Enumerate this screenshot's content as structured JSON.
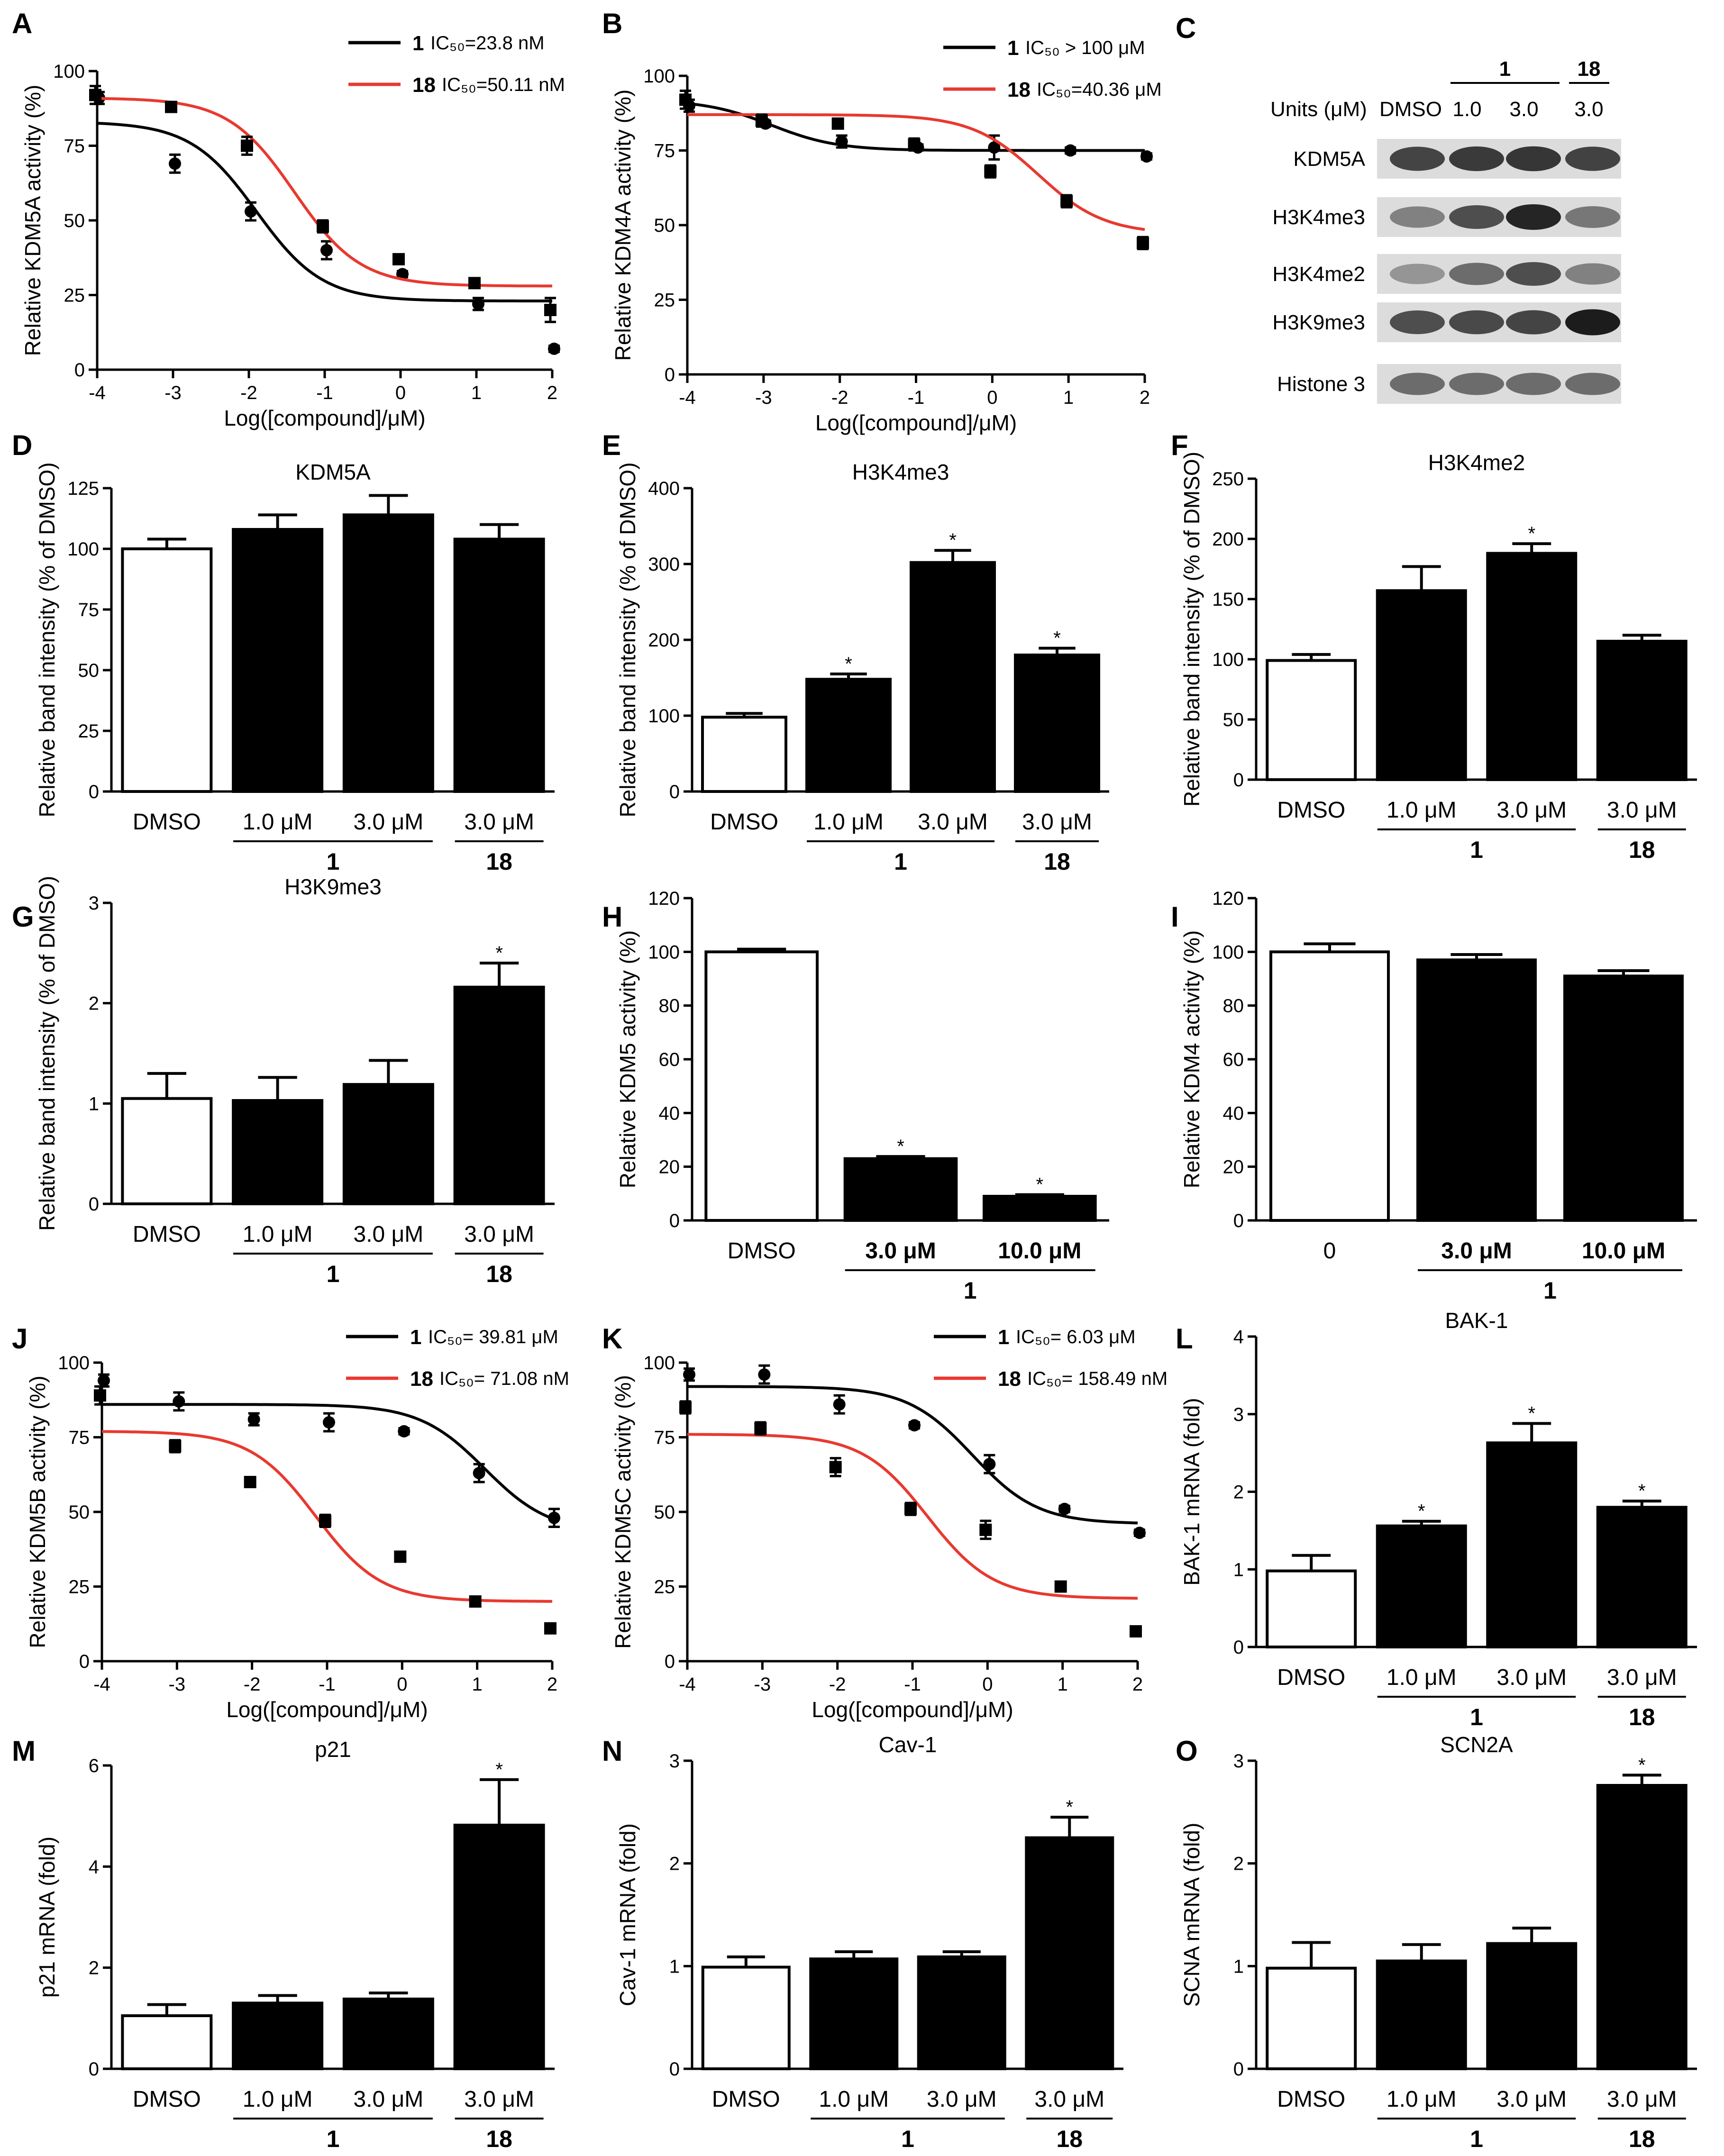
{
  "colors": {
    "compound1": "#000000",
    "compound18": "#e8392f"
  },
  "chart_data": [
    {
      "id": "A",
      "type": "line",
      "panel_label": "A",
      "xlabel": "Log([compound]/μM)",
      "ylabel": "Relative KDM5A activity (%)",
      "xlim": [
        -4,
        2
      ],
      "ylim": [
        0,
        100
      ],
      "xticks": [
        -4,
        -3,
        -2,
        -1,
        0,
        1,
        2
      ],
      "yticks": [
        0,
        25,
        50,
        75,
        100
      ],
      "series": [
        {
          "name": "1",
          "ic50_label": "IC₅₀=23.8 nM",
          "color": "#000000",
          "marker": "circle",
          "x": [
            -4,
            -3,
            -2,
            -1,
            0,
            1,
            2
          ],
          "y": [
            91,
            69,
            53,
            40,
            32,
            22,
            7
          ],
          "err": [
            2,
            3,
            3,
            3,
            1,
            2,
            1
          ],
          "fit": {
            "top": 83,
            "bottom": 23,
            "logEC50": -1.9,
            "hill": 1
          }
        },
        {
          "name": "18",
          "ic50_label": "IC₅₀=50.11 nM",
          "color": "#e8392f",
          "marker": "square",
          "x": [
            -4,
            -3,
            -2,
            -1,
            0,
            1,
            2
          ],
          "y": [
            92,
            88,
            75,
            48,
            37,
            29,
            20
          ],
          "err": [
            3,
            1,
            3,
            2,
            1,
            1,
            4
          ],
          "fit": {
            "top": 91,
            "bottom": 28,
            "logEC50": -1.4,
            "hill": 1
          }
        }
      ]
    },
    {
      "id": "B",
      "type": "line",
      "panel_label": "B",
      "xlabel": "Log([compound]/μM)",
      "ylabel": "Relative KDM4A activity (%)",
      "xlim": [
        -4,
        2
      ],
      "ylim": [
        0,
        100
      ],
      "xticks": [
        -4,
        -3,
        -2,
        -1,
        0,
        1,
        2
      ],
      "yticks": [
        0,
        25,
        50,
        75,
        100
      ],
      "series": [
        {
          "name": "1",
          "ic50_label": "IC₅₀ > 100 μM",
          "color": "#000000",
          "marker": "circle",
          "x": [
            -4,
            -3,
            -2,
            -1,
            0,
            1,
            2
          ],
          "y": [
            90,
            84,
            78,
            76,
            76,
            75,
            73
          ],
          "err": [
            2,
            1,
            2,
            1,
            4,
            1,
            1
          ],
          "fit": {
            "top": 92,
            "bottom": 75,
            "logEC50": -2.9,
            "hill": 1
          }
        },
        {
          "name": "18",
          "ic50_label": "IC₅₀=40.36 μM",
          "color": "#e8392f",
          "marker": "square",
          "x": [
            -4,
            -3,
            -2,
            -1,
            0,
            1,
            2
          ],
          "y": [
            92,
            85,
            84,
            77,
            68,
            58,
            44
          ],
          "err": [
            3,
            2,
            1,
            2,
            2,
            2,
            2
          ],
          "fit": {
            "top": 87,
            "bottom": 47,
            "logEC50": 0.6,
            "hill": 1
          }
        }
      ]
    },
    {
      "id": "D",
      "type": "bar",
      "panel_label": "D",
      "title": "KDM5A",
      "ylabel": "Relative band intensity (% of DMSO)",
      "ylim": [
        0,
        125
      ],
      "yticks": [
        0,
        25,
        50,
        75,
        100,
        125
      ],
      "categories": [
        "DMSO",
        "1.0 μM",
        "3.0 μM",
        "3.0 μM"
      ],
      "groups": [
        "1",
        "18"
      ],
      "values": [
        100,
        108,
        114,
        104
      ],
      "err": [
        4,
        6,
        8,
        6
      ],
      "sig": [
        "",
        "",
        "",
        ""
      ]
    },
    {
      "id": "E",
      "type": "bar",
      "panel_label": "E",
      "title": "H3K4me3",
      "ylabel": "Relative band intensity (% of DMSO)",
      "ylim": [
        0,
        400
      ],
      "yticks": [
        0,
        100,
        200,
        300,
        400
      ],
      "categories": [
        "DMSO",
        "1.0 μM",
        "3.0 μM",
        "3.0 μM"
      ],
      "groups": [
        "1",
        "18"
      ],
      "values": [
        98,
        148,
        302,
        180
      ],
      "err": [
        5,
        7,
        16,
        9
      ],
      "sig": [
        "",
        "*",
        "*",
        "*"
      ]
    },
    {
      "id": "F",
      "type": "bar",
      "panel_label": "F",
      "title": "H3K4me2",
      "ylabel": "Relative band intensity (% of DMSO)",
      "ylim": [
        0,
        250
      ],
      "yticks": [
        0,
        50,
        100,
        150,
        200,
        250
      ],
      "categories": [
        "DMSO",
        "1.0 μM",
        "3.0 μM",
        "3.0 μM"
      ],
      "groups": [
        "1",
        "18"
      ],
      "values": [
        99,
        157,
        188,
        115
      ],
      "err": [
        5,
        20,
        8,
        5
      ],
      "sig": [
        "",
        "",
        "*",
        ""
      ]
    },
    {
      "id": "G",
      "type": "bar",
      "panel_label": "G",
      "title": "H3K9me3",
      "ylabel": "Relative band intensity (% of DMSO)",
      "ylim": [
        0,
        3
      ],
      "yticks": [
        0,
        1,
        2,
        3
      ],
      "categories": [
        "DMSO",
        "1.0 μM",
        "3.0 μM",
        "3.0 μM"
      ],
      "groups": [
        "1",
        "18"
      ],
      "values": [
        1.05,
        1.03,
        1.19,
        2.16
      ],
      "err": [
        0.25,
        0.23,
        0.24,
        0.24
      ],
      "sig": [
        "",
        "",
        "",
        "*"
      ]
    },
    {
      "id": "H",
      "type": "bar",
      "panel_label": "H",
      "ylabel": "Relative KDM5 activity (%)",
      "ylim": [
        0,
        120
      ],
      "yticks": [
        0,
        20,
        40,
        60,
        80,
        100,
        120
      ],
      "categories": [
        "DMSO",
        "3.0 μM",
        "10.0 μM"
      ],
      "groups": [
        "1"
      ],
      "values": [
        100,
        23,
        9
      ],
      "err": [
        1,
        0.8,
        0.6
      ],
      "sig": [
        "",
        "*",
        "*"
      ]
    },
    {
      "id": "I",
      "type": "bar",
      "panel_label": "I",
      "ylabel": "Relative KDM4 activity (%)",
      "ylim": [
        0,
        120
      ],
      "yticks": [
        0,
        20,
        40,
        60,
        80,
        100,
        120
      ],
      "categories": [
        "0",
        "3.0 μM",
        "10.0 μM"
      ],
      "groups": [
        "1"
      ],
      "values": [
        100,
        97,
        91
      ],
      "err": [
        3,
        2,
        2
      ],
      "sig": [
        "",
        "",
        ""
      ]
    },
    {
      "id": "J",
      "type": "line",
      "panel_label": "J",
      "xlabel": "Log([compound]/μM)",
      "ylabel": "Relative KDM5B activity (%)",
      "xlim": [
        -4,
        2
      ],
      "ylim": [
        0,
        100
      ],
      "xticks": [
        -4,
        -3,
        -2,
        -1,
        0,
        1,
        2
      ],
      "yticks": [
        0,
        25,
        50,
        75,
        100
      ],
      "series": [
        {
          "name": "1",
          "ic50_label": "IC₅₀= 39.81 μM",
          "color": "#000000",
          "marker": "circle",
          "x": [
            -4,
            -3,
            -2,
            -1,
            0,
            1,
            2
          ],
          "y": [
            94,
            87,
            81,
            80,
            77,
            63,
            48
          ],
          "err": [
            2,
            3,
            2,
            3,
            1,
            3,
            3
          ],
          "fit": {
            "top": 86,
            "bottom": 43,
            "logEC50": 1.1,
            "hill": 1
          }
        },
        {
          "name": "18",
          "ic50_label": "IC₅₀= 71.08 nM",
          "color": "#e8392f",
          "marker": "square",
          "x": [
            -4,
            -3,
            -2,
            -1,
            0,
            1,
            2
          ],
          "y": [
            89,
            72,
            60,
            47,
            35,
            20,
            11
          ],
          "err": [
            3,
            2,
            1,
            2,
            1,
            1,
            1
          ],
          "fit": {
            "top": 77,
            "bottom": 20,
            "logEC50": -1.15,
            "hill": 1
          }
        }
      ]
    },
    {
      "id": "K",
      "type": "line",
      "panel_label": "K",
      "xlabel": "Log([compound]/μM)",
      "ylabel": "Relative KDM5C activity (%)",
      "xlim": [
        -4,
        2
      ],
      "ylim": [
        0,
        100
      ],
      "xticks": [
        -4,
        -3,
        -2,
        -1,
        0,
        1,
        2
      ],
      "yticks": [
        0,
        25,
        50,
        75,
        100
      ],
      "series": [
        {
          "name": "1",
          "ic50_label": "IC₅₀= 6.03 μM",
          "color": "#000000",
          "marker": "circle",
          "x": [
            -4,
            -3,
            -2,
            -1,
            0,
            1,
            2
          ],
          "y": [
            96,
            96,
            86,
            79,
            66,
            51,
            43
          ],
          "err": [
            2,
            3,
            3,
            1,
            3,
            1,
            1
          ],
          "fit": {
            "top": 92,
            "bottom": 46,
            "logEC50": -0.2,
            "hill": 1
          }
        },
        {
          "name": "18",
          "ic50_label": "IC₅₀= 158.49 nM",
          "color": "#e8392f",
          "marker": "square",
          "x": [
            -4,
            -3,
            -2,
            -1,
            0,
            1,
            2
          ],
          "y": [
            85,
            78,
            65,
            51,
            44,
            25,
            10
          ],
          "err": [
            2,
            2,
            3,
            2,
            3,
            1,
            1
          ],
          "fit": {
            "top": 76,
            "bottom": 21,
            "logEC50": -0.8,
            "hill": 1
          }
        }
      ]
    },
    {
      "id": "L",
      "type": "bar",
      "panel_label": "L",
      "title": "BAK-1",
      "ylabel": "BAK-1 mRNA (fold)",
      "ylim": [
        0,
        4
      ],
      "yticks": [
        0,
        1,
        2,
        3,
        4
      ],
      "categories": [
        "DMSO",
        "1.0 μM",
        "3.0 μM",
        "3.0 μM"
      ],
      "groups": [
        "1",
        "18"
      ],
      "values": [
        0.98,
        1.56,
        2.63,
        1.8
      ],
      "err": [
        0.2,
        0.06,
        0.25,
        0.08
      ],
      "sig": [
        "",
        "*",
        "*",
        "*"
      ]
    },
    {
      "id": "M",
      "type": "bar",
      "panel_label": "M",
      "title": "p21",
      "ylabel": "p21 mRNA (fold)",
      "ylim": [
        0,
        6
      ],
      "yticks": [
        0,
        2,
        4,
        6
      ],
      "categories": [
        "DMSO",
        "1.0 μM",
        "3.0 μM",
        "3.0 μM"
      ],
      "groups": [
        "1",
        "18"
      ],
      "values": [
        1.05,
        1.3,
        1.38,
        4.82
      ],
      "err": [
        0.22,
        0.15,
        0.12,
        0.9
      ],
      "sig": [
        "",
        "",
        "",
        "*"
      ]
    },
    {
      "id": "N",
      "type": "bar",
      "panel_label": "N",
      "title": "Cav-1",
      "ylabel": "Cav-1 mRNA (fold)",
      "ylim": [
        0,
        3
      ],
      "yticks": [
        0,
        1,
        2,
        3
      ],
      "categories": [
        "DMSO",
        "1.0 μM",
        "3.0 μM",
        "3.0 μM"
      ],
      "groups": [
        "1",
        "18"
      ],
      "values": [
        0.99,
        1.07,
        1.09,
        2.25
      ],
      "err": [
        0.1,
        0.07,
        0.05,
        0.2
      ],
      "sig": [
        "",
        "",
        "",
        "*"
      ]
    },
    {
      "id": "O",
      "type": "bar",
      "panel_label": "O",
      "title": "SCN2A",
      "ylabel": "SCNA mRNA (fold)",
      "ylim": [
        0,
        3
      ],
      "yticks": [
        0,
        1,
        2,
        3
      ],
      "categories": [
        "DMSO",
        "1.0 μM",
        "3.0 μM",
        "3.0 μM"
      ],
      "groups": [
        "1",
        "18"
      ],
      "values": [
        0.98,
        1.05,
        1.22,
        2.76
      ],
      "err": [
        0.25,
        0.16,
        0.15,
        0.1
      ],
      "sig": [
        "",
        "",
        "",
        "*"
      ]
    }
  ],
  "blot": {
    "panel_label": "C",
    "header_units": "Units (μM)",
    "lanes": [
      "DMSO",
      "1.0",
      "3.0",
      "3.0"
    ],
    "groups": [
      "1",
      "18"
    ],
    "rows": [
      {
        "label": "KDM5A",
        "intensity": [
          0.75,
          0.8,
          0.82,
          0.76
        ]
      },
      {
        "label": "H3K4me3",
        "intensity": [
          0.45,
          0.7,
          0.9,
          0.5
        ]
      },
      {
        "label": "H3K4me2",
        "intensity": [
          0.35,
          0.55,
          0.7,
          0.45
        ]
      },
      {
        "label": "H3K9me3",
        "intensity": [
          0.7,
          0.72,
          0.75,
          0.95
        ]
      },
      {
        "label": "Histone 3",
        "intensity": [
          0.55,
          0.55,
          0.55,
          0.55
        ]
      }
    ]
  }
}
